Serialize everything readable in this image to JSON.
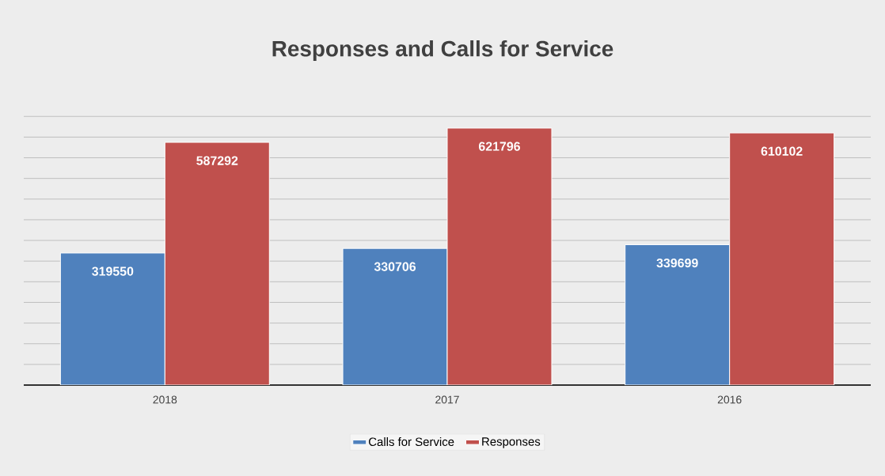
{
  "chart_data": {
    "type": "bar",
    "title": "Responses and Calls for Service",
    "categories": [
      "2018",
      "2017",
      "2016"
    ],
    "series": [
      {
        "name": "Calls for Service",
        "color": "#4f81bd",
        "values": [
          319550,
          330706,
          339699
        ]
      },
      {
        "name": "Responses",
        "color": "#c0504d",
        "values": [
          587292,
          621796,
          610102
        ]
      }
    ],
    "grid": "y",
    "legend": "bottom",
    "data_labels": true,
    "tick_labels": "x"
  }
}
